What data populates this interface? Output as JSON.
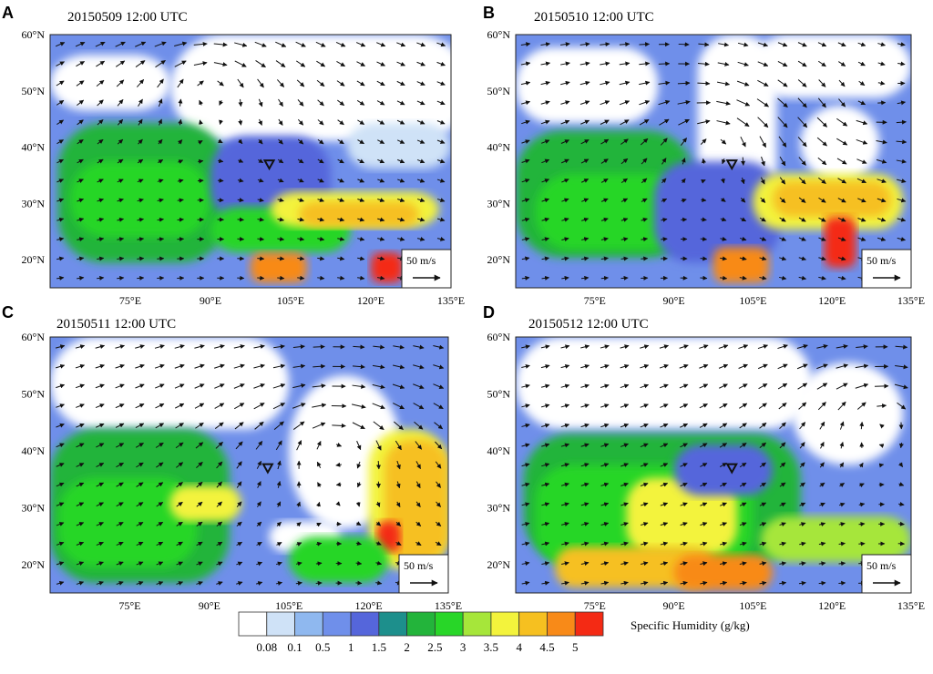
{
  "panels": [
    {
      "letter": "A",
      "title": "20150509 12:00 UTC"
    },
    {
      "letter": "B",
      "title": "20150510 12:00 UTC"
    },
    {
      "letter": "C",
      "title": "20150511 12:00 UTC"
    },
    {
      "letter": "D",
      "title": "20150512 12:00 UTC"
    }
  ],
  "lat_labels": [
    "60°N",
    "50°N",
    "40°N",
    "30°N",
    "20°N"
  ],
  "lon_labels": [
    "75°E",
    "90°E",
    "105°E",
    "120°E",
    "135°E"
  ],
  "lat_values": [
    60,
    50,
    40,
    30,
    20
  ],
  "lon_values": [
    75,
    90,
    105,
    120,
    135
  ],
  "extent": {
    "lon": [
      60,
      135
    ],
    "lat": [
      15,
      60
    ]
  },
  "station": {
    "lon": 101,
    "lat": 37
  },
  "reference_vector": {
    "label": "50 m/s"
  },
  "colorbar": {
    "title": "Specific Humidity (g/kg)",
    "ticks": [
      "0.08",
      "0.1",
      "0.5",
      "1",
      "1.5",
      "2",
      "2.5",
      "3",
      "3.5",
      "4",
      "4.5",
      "5"
    ],
    "colors": [
      "#ffffff",
      "#cfe2f7",
      "#8fb8ef",
      "#6f8fea",
      "#5566db",
      "#1d8f8c",
      "#23b43b",
      "#28d628",
      "#a6e63a",
      "#f3f33c",
      "#f6c020",
      "#f88a18",
      "#f42a14"
    ]
  }
}
